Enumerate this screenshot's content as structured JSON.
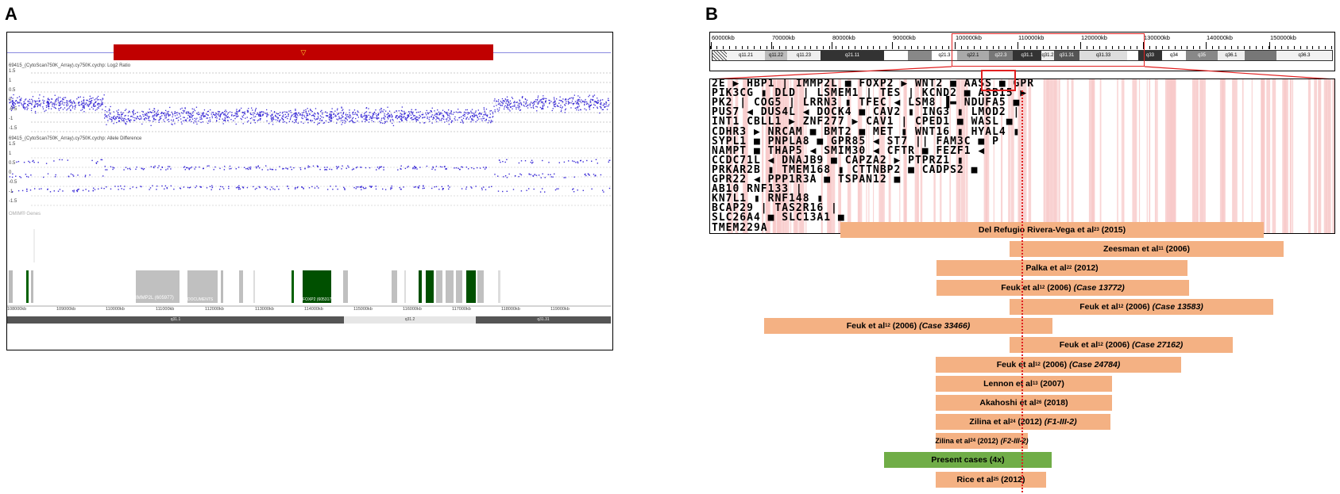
{
  "panels": {
    "a": "A",
    "b": "B"
  },
  "panelA": {
    "cnv_label": "▽",
    "track1_label": "69415_(CytoScan750K_Array).cy750K.cychp: Log2 Ratio",
    "track2_label": "69415_(CytoScan750K_Array).cy750K.cychp: Allele Difference",
    "genes_track_label": "OMIM® Genes",
    "log2_ticks": [
      "1.5",
      "1",
      "0.5",
      "0",
      "-0.5",
      "-1",
      "-1.5"
    ],
    "allele_ticks": [
      "1.5",
      "1",
      "0.5",
      "0",
      "-0.5",
      "-1",
      "-1.5"
    ],
    "gene_labels": [
      "IMMP2L (605977)",
      "DOCUMENTS",
      "FOXP2 (605317)"
    ],
    "axis_labels": [
      "108000kb",
      "109000kb",
      "110000kb",
      "111000kb",
      "112000kb",
      "113000kb",
      "114000kb",
      "115000kb",
      "116000kb",
      "117000kb",
      "118000kb",
      "119000kb"
    ],
    "bands": [
      "q31.1",
      "q31.2",
      "q31.31"
    ]
  },
  "panelB": {
    "ruler_labels": [
      "60000kb",
      "70000kb",
      "80000kb",
      "90000kb",
      "100000kb",
      "110000kb",
      "120000kb",
      "130000kb",
      "140000kb",
      "150000kb"
    ],
    "bands": [
      "q11.21",
      "q11.22",
      "q11.23",
      "q21.11",
      "q21.3",
      "q22.1",
      "q22.3",
      "q31.1",
      "q31.2",
      "q31.31",
      "q31.33",
      "q33",
      "q34",
      "q35",
      "q36.1",
      "q36.3"
    ],
    "gene_rows": [
      "2E ▶   HBP1 |    IMMP2L ■      FOXP2 ▶   WNT2 ■    AASS ■   GPR",
      "  PIK3CG ▮  DLD |  LSMEM1 |   TES |   KCND2 ■   ASB15 ▶",
      "PK2 |  COG5 |   LRRN3 ▮   TFEC ◀   LSM8 ▐▬   NDUFA5 ■",
      "PUS7 ◀ DUS4L ◀  DOCK4 ■        CAV2 ▮     ING3 ▮  LMOD2 |",
      "INT1   CBLL1 ▶  ZNF277 ▶      CAV1 |     CPED1 ■  WASL ■",
      "CDHR3 ▶    NRCAM ■   BMT2 ■    MET ▮     WNT16 ▮  HYAL4 ▮",
      " SYPL1 ■   PNPLA8 ■   GPR85 ◀   ST7 ||    FAM3C ■     P",
      "  NAMPT ■   THAP5 ◀  SMIM30 ◀   CFTR ■   FEZF1 ◀",
      "CCDC71L ◀   DNAJB9 ■    CAPZA2 ▶   PTPRZ1 ▮",
      "  PRKAR2B ▮      TMEM168 ▮    CTTNBP2 ■    CADPS2 ■",
      "     GPR22 ◀         PPP1R3A ■     TSPAN12 ■",
      "AB10                                          RNF133 |",
      "KN7L1 ▮                                       RNF148 ▮",
      "       BCAP29 |                               TAS2R16 |",
      "       SLC26A4 ■                              SLC13A1 ■",
      "                                                TMEM229A"
    ],
    "studies": [
      {
        "author": "Del Refugio Rivera-Vega et al",
        "ref": "23",
        "year": "(2015)",
        "case": ""
      },
      {
        "author": "Zeesman et al",
        "ref": "11",
        "year": "(2006)",
        "case": ""
      },
      {
        "author": "Palka et al",
        "ref": "22",
        "year": "(2012)",
        "case": ""
      },
      {
        "author": "Feuk et al",
        "ref": "12",
        "year": "(2006)",
        "case": "(Case 13772)"
      },
      {
        "author": "Feuk et al",
        "ref": "12",
        "year": "(2006)",
        "case": "(Case 13583)"
      },
      {
        "author": "Feuk et al",
        "ref": "12",
        "year": "(2006)",
        "case": "(Case 33466)"
      },
      {
        "author": "Feuk et al",
        "ref": "12",
        "year": "(2006)",
        "case": "(Case 27162)"
      },
      {
        "author": "Feuk et al",
        "ref": "12",
        "year": "(2006)",
        "case": "(Case 24784)"
      },
      {
        "author": "Lennon et al",
        "ref": "13",
        "year": "(2007)",
        "case": ""
      },
      {
        "author": "Akahoshi et al",
        "ref": "26",
        "year": "(2018)",
        "case": ""
      },
      {
        "author": "Zilina et al",
        "ref": "24",
        "year": "(2012)",
        "case": "(F1-III-2)"
      },
      {
        "author": "Zilina et al",
        "ref": "24",
        "year": "(2012)",
        "case": "(F2-III-2)"
      },
      {
        "author": "Present cases (4x)",
        "ref": "",
        "year": "",
        "case": ""
      },
      {
        "author": "Rice et al",
        "ref": "25",
        "year": "(2012)",
        "case": ""
      }
    ]
  },
  "colors": {
    "cnv": "#c00000",
    "probe": "#3a2bd6",
    "bar": "#f4b183",
    "present": "#70ad47",
    "foxp2_gene": "#005000",
    "highlight": "#e02020"
  }
}
